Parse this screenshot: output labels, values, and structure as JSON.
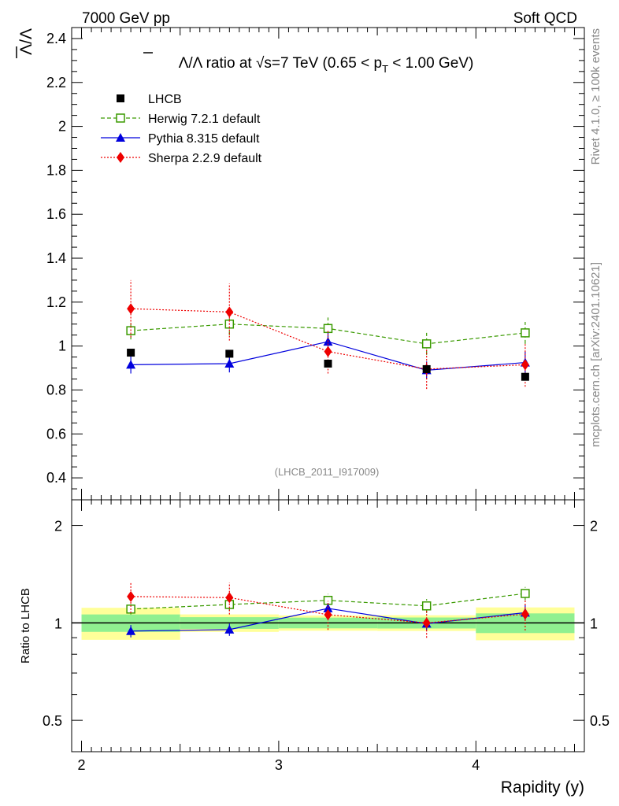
{
  "header": {
    "left": "7000 GeV pp",
    "right": "Soft QCD"
  },
  "side": {
    "rivet": "Rivet 4.1.0, ≥ 100k events",
    "mcplots": "mcplots.cern.ch [arXiv:2401.10621]"
  },
  "colors": {
    "lhcb": "#000000",
    "herwig": "#3a9a00",
    "pythia": "#0000dd",
    "sherpa": "#ee0000",
    "band_inner": "#90f090",
    "band_outer": "#ffff99"
  },
  "chart_data": {
    "type": "line",
    "title": "Λ̅/Λ ratio at √s=7 TeV (0.65 < p_T < 1.00 GeV)",
    "title_parts": {
      "pre": "Λ/Λ ratio at ",
      "sqrt": "√",
      "s": "s=7 TeV (0.65 < p",
      "sub": "T",
      "post": " < 1.00 GeV)"
    },
    "ylabel": "Λ/Λ",
    "xlabel": "Rapidity (y)",
    "ratio_ylabel": "Ratio to LHCB",
    "watermark": "(LHCB_2011_I917009)",
    "xlim": [
      1.95,
      4.55
    ],
    "ylim": [
      0.3,
      2.45
    ],
    "ratio_ylim": [
      0.4,
      2.4
    ],
    "xticks": [
      2,
      3,
      4
    ],
    "yticks": [
      0.4,
      0.6,
      0.8,
      1,
      1.2,
      1.4,
      1.6,
      1.8,
      2,
      2.2,
      2.4
    ],
    "ratio_yticks": [
      0.5,
      1,
      2
    ],
    "x": [
      2.25,
      2.75,
      3.25,
      3.75,
      4.25
    ],
    "bins": [
      [
        2.0,
        2.5
      ],
      [
        2.5,
        3.0
      ],
      [
        3.0,
        3.5
      ],
      [
        3.5,
        4.0
      ],
      [
        4.0,
        4.5
      ]
    ],
    "data": {
      "name": "LHCB",
      "values": [
        0.97,
        0.965,
        0.92,
        0.895,
        0.86
      ],
      "stat_band": [
        0.06,
        0.04,
        0.035,
        0.035,
        0.06
      ],
      "total_band": [
        0.11,
        0.06,
        0.05,
        0.05,
        0.1
      ]
    },
    "series": [
      {
        "key": "herwig",
        "name": "Herwig 7.2.1 default",
        "values": [
          1.07,
          1.1,
          1.08,
          1.01,
          1.06
        ],
        "errors": [
          0.04,
          0.05,
          0.05,
          0.05,
          0.05
        ]
      },
      {
        "key": "pythia",
        "name": "Pythia 8.315 default",
        "values": [
          0.915,
          0.92,
          1.02,
          0.89,
          0.925
        ],
        "errors": [
          0.04,
          0.04,
          0.04,
          0.04,
          0.05
        ]
      },
      {
        "key": "sherpa",
        "name": "Sherpa 2.2.9 default",
        "values": [
          1.17,
          1.155,
          0.975,
          0.895,
          0.915
        ],
        "errors": [
          0.13,
          0.13,
          0.1,
          0.09,
          0.1
        ]
      }
    ]
  }
}
